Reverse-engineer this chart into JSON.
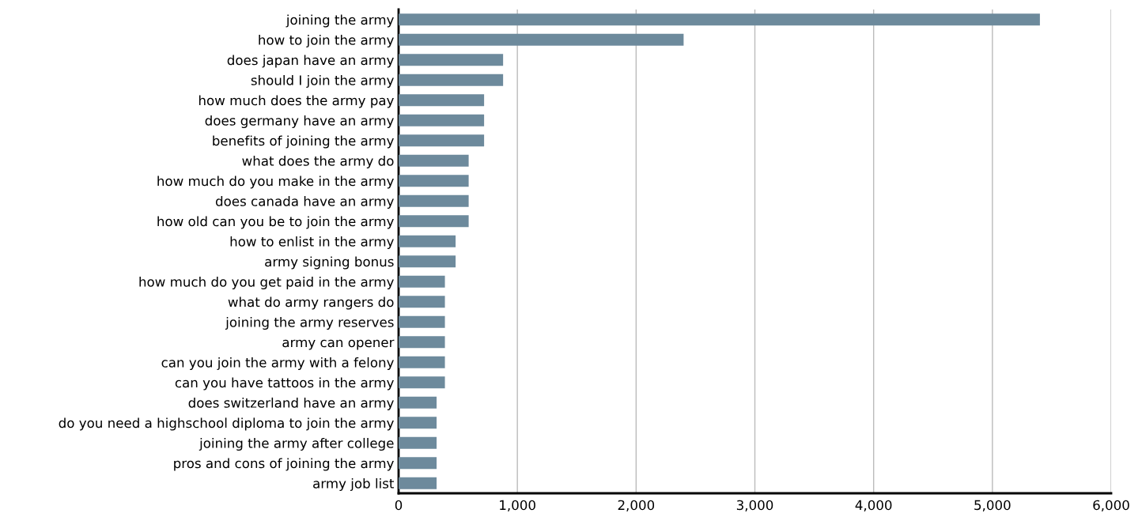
{
  "chart_data": {
    "type": "bar",
    "orientation": "horizontal",
    "categories": [
      "joining the army",
      "how to join the army",
      "does japan have an army",
      "should I join the army",
      "how much does the army pay",
      "does germany have an army",
      "benefits of joining the army",
      "what does the army do",
      "how much do you make in the army",
      "does canada have an army",
      "how old can you be to join the army",
      "how to enlist in the army",
      "army signing bonus",
      "how much do you get paid in the army",
      "what do army rangers do",
      "joining the army reserves",
      "army can opener",
      "can you join the army with a felony",
      "can you have tattoos in the army",
      "does switzerland have an army",
      "do you need a highschool diploma to join the army",
      "joining the army after college",
      "pros and cons of joining the army",
      "army job list"
    ],
    "values": [
      5400,
      2400,
      880,
      880,
      720,
      720,
      720,
      590,
      590,
      590,
      590,
      480,
      480,
      390,
      390,
      390,
      390,
      390,
      390,
      320,
      320,
      320,
      320,
      320
    ],
    "color": "#6d8a9c",
    "xlim": [
      0,
      6000
    ],
    "xticks": [
      {
        "value": 0,
        "label": "0"
      },
      {
        "value": 1000,
        "label": "1,000"
      },
      {
        "value": 2000,
        "label": "2,000"
      },
      {
        "value": 3000,
        "label": "3,000"
      },
      {
        "value": 4000,
        "label": "4,000"
      },
      {
        "value": 5000,
        "label": "5,000"
      },
      {
        "value": 6000,
        "label": "6,000"
      }
    ],
    "grid": "x"
  }
}
